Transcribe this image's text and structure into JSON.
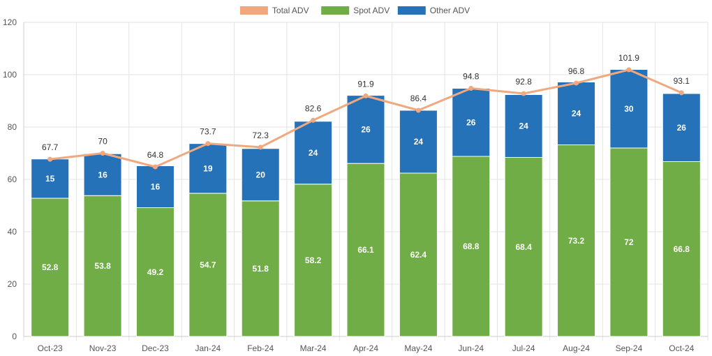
{
  "chart_data": {
    "type": "bar",
    "stacked": true,
    "categories": [
      "Oct-23",
      "Nov-23",
      "Dec-23",
      "Jan-24",
      "Feb-24",
      "Mar-24",
      "Apr-24",
      "May-24",
      "Jun-24",
      "Jul-24",
      "Aug-24",
      "Sep-24",
      "Oct-24"
    ],
    "series": [
      {
        "name": "Spot ADV",
        "type": "bar",
        "color": "#70ad47",
        "values": [
          52.8,
          53.8,
          49.2,
          54.7,
          51.8,
          58.2,
          66.1,
          62.4,
          68.8,
          68.4,
          73.2,
          72,
          66.8
        ]
      },
      {
        "name": "Other ADV",
        "type": "bar",
        "color": "#2672b8",
        "values": [
          15,
          16,
          16,
          19,
          20,
          24,
          26,
          24,
          26,
          24,
          24,
          30,
          26
        ]
      },
      {
        "name": "Total ADV",
        "type": "line",
        "color": "#f0a97f",
        "values": [
          67.7,
          70,
          64.8,
          73.7,
          72.3,
          82.6,
          91.9,
          86.4,
          94.8,
          92.8,
          96.8,
          101.9,
          93.1
        ]
      }
    ],
    "legend": [
      "Total ADV",
      "Spot ADV",
      "Other ADV"
    ],
    "legend_position": "top",
    "ylim": [
      0,
      120
    ],
    "yticks": [
      0,
      20,
      40,
      60,
      80,
      100,
      120
    ],
    "grid": true,
    "title": "",
    "xlabel": "",
    "ylabel": ""
  }
}
